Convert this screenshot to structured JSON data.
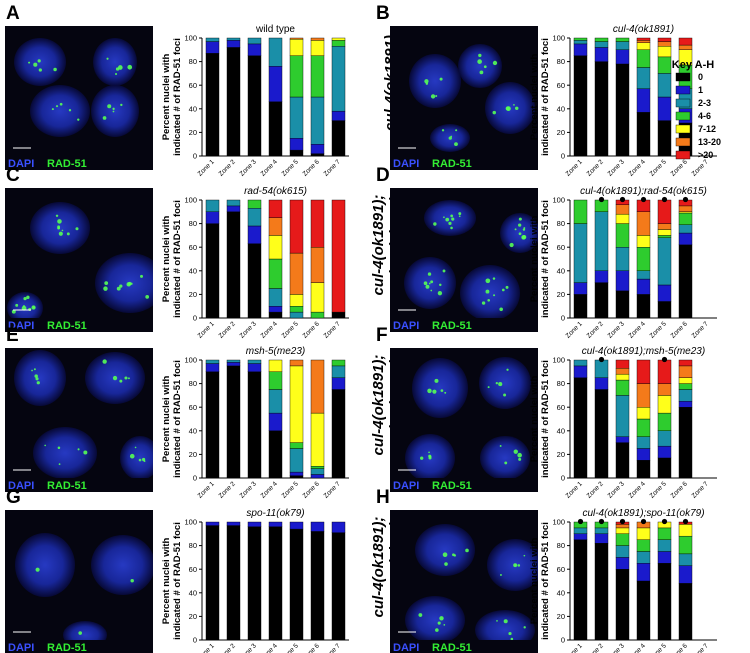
{
  "figure": {
    "stain_dapi": "DAPI",
    "stain_rad51": "RAD-51",
    "ylabel_line1": "Percent nuclei with",
    "ylabel_line2": "indicated # of RAD-51 foci",
    "zone_labels": [
      "Zone 1",
      "Zone 2",
      "Zone 3",
      "Zone 4",
      "Zone 5",
      "Zone 6",
      "Zone 7"
    ],
    "y_ticks": [
      "0",
      "20",
      "40",
      "60",
      "80",
      "100"
    ],
    "key": {
      "title": "Key A-H",
      "items": [
        {
          "label": "0",
          "color": "#000000"
        },
        {
          "label": "1",
          "color": "#1a1acc"
        },
        {
          "label": "2-3",
          "color": "#1a8fa8"
        },
        {
          "label": "4-6",
          "color": "#2ecc2e"
        },
        {
          "label": "7-12",
          "color": "#ffff1a"
        },
        {
          "label": "13-20",
          "color": "#f47a1a"
        },
        {
          "label": ">20",
          "color": "#e61a1a"
        }
      ]
    }
  },
  "panels": [
    {
      "letter": "A",
      "side_label": "wild type"
    },
    {
      "letter": "B",
      "side_label": "cul-4(ok1891)"
    },
    {
      "letter": "C",
      "side_label": "rad-54(ok615)"
    },
    {
      "letter": "D",
      "side_label": "cul-4(ok1891);\nrad-54(ok615)"
    },
    {
      "letter": "E",
      "side_label": "msh-5(me23)"
    },
    {
      "letter": "F",
      "side_label": "cul-4(ok1891);\nmsh-5(me23)"
    },
    {
      "letter": "G",
      "side_label": "spo-11(ok79)"
    },
    {
      "letter": "H",
      "side_label": "cul-4(ok1891);\nspo-11(ok79)"
    }
  ],
  "chart_data": [
    {
      "type": "bar",
      "stacked": true,
      "title": "wild type",
      "title_italic": false,
      "ylim": [
        0,
        100
      ],
      "categories": [
        "Zone 1",
        "Zone 2",
        "Zone 3",
        "Zone 4",
        "Zone 5",
        "Zone 6",
        "Zone 7"
      ],
      "markers": [],
      "series": [
        {
          "name": "0",
          "values": [
            87,
            92,
            85,
            46,
            5,
            2,
            30
          ]
        },
        {
          "name": "1",
          "values": [
            10,
            6,
            10,
            30,
            10,
            8,
            8
          ]
        },
        {
          "name": "2-3",
          "values": [
            3,
            2,
            5,
            24,
            35,
            40,
            55
          ]
        },
        {
          "name": "4-6",
          "values": [
            0,
            0,
            0,
            0,
            35,
            35,
            5
          ]
        },
        {
          "name": "7-12",
          "values": [
            0,
            0,
            0,
            0,
            14,
            13,
            2
          ]
        },
        {
          "name": "13-20",
          "values": [
            0,
            0,
            0,
            0,
            1,
            2,
            0
          ]
        },
        {
          "name": ">20",
          "values": [
            0,
            0,
            0,
            0,
            0,
            0,
            0
          ]
        }
      ]
    },
    {
      "type": "bar",
      "stacked": true,
      "title": "cul-4(ok1891)",
      "title_italic": true,
      "ylim": [
        0,
        100
      ],
      "categories": [
        "Zone 1",
        "Zone 2",
        "Zone 3",
        "Zone 4",
        "Zone 5",
        "Zone 6",
        "Zone 7"
      ],
      "markers": [],
      "series": [
        {
          "name": "0",
          "values": [
            85,
            80,
            78,
            37,
            30,
            28,
            0
          ]
        },
        {
          "name": "1",
          "values": [
            10,
            12,
            12,
            20,
            20,
            12,
            0
          ]
        },
        {
          "name": "2-3",
          "values": [
            3,
            5,
            7,
            18,
            20,
            17,
            0
          ]
        },
        {
          "name": "4-6",
          "values": [
            2,
            3,
            3,
            15,
            14,
            20,
            0
          ]
        },
        {
          "name": "7-12",
          "values": [
            0,
            0,
            0,
            6,
            9,
            13,
            0
          ]
        },
        {
          "name": "13-20",
          "values": [
            0,
            0,
            0,
            2,
            4,
            4,
            0
          ]
        },
        {
          "name": ">20",
          "values": [
            0,
            0,
            0,
            2,
            3,
            6,
            0
          ]
        }
      ]
    },
    {
      "type": "bar",
      "stacked": true,
      "title": "rad-54(ok615)",
      "title_italic": true,
      "ylim": [
        0,
        100
      ],
      "categories": [
        "Zone 1",
        "Zone 2",
        "Zone 3",
        "Zone 4",
        "Zone 5",
        "Zone 6",
        "Zone 7"
      ],
      "markers": [],
      "series": [
        {
          "name": "0",
          "values": [
            80,
            90,
            63,
            5,
            0,
            0,
            5
          ]
        },
        {
          "name": "1",
          "values": [
            10,
            5,
            15,
            5,
            0,
            0,
            0
          ]
        },
        {
          "name": "2-3",
          "values": [
            10,
            5,
            15,
            15,
            5,
            0,
            0
          ]
        },
        {
          "name": "4-6",
          "values": [
            0,
            0,
            7,
            25,
            5,
            5,
            0
          ]
        },
        {
          "name": "7-12",
          "values": [
            0,
            0,
            0,
            20,
            10,
            25,
            0
          ]
        },
        {
          "name": "13-20",
          "values": [
            0,
            0,
            0,
            15,
            35,
            30,
            0
          ]
        },
        {
          "name": ">20",
          "values": [
            0,
            0,
            0,
            15,
            45,
            40,
            95
          ]
        }
      ]
    },
    {
      "type": "bar",
      "stacked": true,
      "title": "cul-4(ok1891);rad-54(ok615)",
      "title_italic": true,
      "ylim": [
        0,
        100
      ],
      "categories": [
        "Zone 1",
        "Zone 2",
        "Zone 3",
        "Zone 4",
        "Zone 5",
        "Zone 6",
        "Zone 7"
      ],
      "markers": [
        "Zone 2",
        "Zone 3",
        "Zone 4",
        "Zone 5",
        "Zone 6"
      ],
      "series": [
        {
          "name": "0",
          "values": [
            20,
            30,
            23,
            20,
            14,
            62,
            0
          ]
        },
        {
          "name": "1",
          "values": [
            10,
            10,
            17,
            13,
            14,
            10,
            0
          ]
        },
        {
          "name": "2-3",
          "values": [
            50,
            50,
            20,
            7,
            40,
            7,
            0
          ]
        },
        {
          "name": "4-6",
          "values": [
            20,
            10,
            20,
            20,
            2,
            10,
            0
          ]
        },
        {
          "name": "7-12",
          "values": [
            0,
            0,
            8,
            10,
            5,
            1,
            0
          ]
        },
        {
          "name": "13-20",
          "values": [
            0,
            0,
            8,
            20,
            5,
            5,
            0
          ]
        },
        {
          "name": ">20",
          "values": [
            0,
            0,
            4,
            10,
            20,
            5,
            0
          ]
        }
      ]
    },
    {
      "type": "bar",
      "stacked": true,
      "title": "msh-5(me23)",
      "title_italic": true,
      "ylim": [
        0,
        100
      ],
      "categories": [
        "Zone 1",
        "Zone 2",
        "Zone 3",
        "Zone 4",
        "Zone 5",
        "Zone 6",
        "Zone 7"
      ],
      "markers": [],
      "series": [
        {
          "name": "0",
          "values": [
            90,
            95,
            90,
            40,
            2,
            0,
            75
          ]
        },
        {
          "name": "1",
          "values": [
            7,
            3,
            7,
            15,
            3,
            3,
            10
          ]
        },
        {
          "name": "2-3",
          "values": [
            3,
            2,
            3,
            20,
            20,
            5,
            10
          ]
        },
        {
          "name": "4-6",
          "values": [
            0,
            0,
            0,
            15,
            5,
            2,
            5
          ]
        },
        {
          "name": "7-12",
          "values": [
            0,
            0,
            0,
            10,
            65,
            45,
            0
          ]
        },
        {
          "name": "13-20",
          "values": [
            0,
            0,
            0,
            0,
            5,
            45,
            0
          ]
        },
        {
          "name": ">20",
          "values": [
            0,
            0,
            0,
            0,
            0,
            0,
            0
          ]
        }
      ]
    },
    {
      "type": "bar",
      "stacked": true,
      "title": "cul-4(ok1891);msh-5(me23)",
      "title_italic": true,
      "ylim": [
        0,
        100
      ],
      "categories": [
        "Zone 1",
        "Zone 2",
        "Zone 3",
        "Zone 4",
        "Zone 5",
        "Zone 6",
        "Zone 7"
      ],
      "markers": [
        "Zone 2",
        "Zone 5"
      ],
      "series": [
        {
          "name": "0",
          "values": [
            85,
            75,
            30,
            15,
            17,
            60,
            0
          ]
        },
        {
          "name": "1",
          "values": [
            10,
            10,
            5,
            10,
            10,
            5,
            0
          ]
        },
        {
          "name": "2-3",
          "values": [
            5,
            15,
            35,
            10,
            13,
            10,
            0
          ]
        },
        {
          "name": "4-6",
          "values": [
            0,
            0,
            13,
            15,
            15,
            5,
            0
          ]
        },
        {
          "name": "7-12",
          "values": [
            0,
            0,
            5,
            10,
            15,
            5,
            0
          ]
        },
        {
          "name": "13-20",
          "values": [
            0,
            0,
            5,
            20,
            10,
            10,
            0
          ]
        },
        {
          "name": ">20",
          "values": [
            0,
            0,
            7,
            20,
            20,
            5,
            0
          ]
        }
      ]
    },
    {
      "type": "bar",
      "stacked": true,
      "title": "spo-11(ok79)",
      "title_italic": true,
      "ylim": [
        0,
        100
      ],
      "categories": [
        "Zone 1",
        "Zone 2",
        "Zone 3",
        "Zone 4",
        "Zone 5",
        "Zone 6",
        "Zone 7"
      ],
      "markers": [],
      "series": [
        {
          "name": "0",
          "values": [
            97,
            97,
            96,
            96,
            94,
            92,
            91
          ]
        },
        {
          "name": "1",
          "values": [
            3,
            3,
            4,
            4,
            6,
            8,
            9
          ]
        },
        {
          "name": "2-3",
          "values": [
            0,
            0,
            0,
            0,
            0,
            0,
            0
          ]
        },
        {
          "name": "4-6",
          "values": [
            0,
            0,
            0,
            0,
            0,
            0,
            0
          ]
        },
        {
          "name": "7-12",
          "values": [
            0,
            0,
            0,
            0,
            0,
            0,
            0
          ]
        },
        {
          "name": "13-20",
          "values": [
            0,
            0,
            0,
            0,
            0,
            0,
            0
          ]
        },
        {
          "name": ">20",
          "values": [
            0,
            0,
            0,
            0,
            0,
            0,
            0
          ]
        }
      ]
    },
    {
      "type": "bar",
      "stacked": true,
      "title": "cul-4(ok1891);spo-11(ok79)",
      "title_italic": true,
      "ylim": [
        0,
        100
      ],
      "categories": [
        "Zone 1",
        "Zone 2",
        "Zone 3",
        "Zone 4",
        "Zone 5",
        "Zone 6",
        "Zone 7"
      ],
      "markers": [
        "Zone 1",
        "Zone 2",
        "Zone 3",
        "Zone 4",
        "Zone 5",
        "Zone 6"
      ],
      "series": [
        {
          "name": "0",
          "values": [
            85,
            82,
            60,
            50,
            65,
            48,
            0
          ]
        },
        {
          "name": "1",
          "values": [
            5,
            8,
            10,
            15,
            10,
            15,
            0
          ]
        },
        {
          "name": "2-3",
          "values": [
            5,
            5,
            10,
            10,
            10,
            10,
            0
          ]
        },
        {
          "name": "4-6",
          "values": [
            5,
            5,
            10,
            10,
            10,
            15,
            0
          ]
        },
        {
          "name": "7-12",
          "values": [
            0,
            0,
            5,
            10,
            5,
            10,
            0
          ]
        },
        {
          "name": "13-20",
          "values": [
            0,
            0,
            3,
            5,
            0,
            0,
            0
          ]
        },
        {
          "name": ">20",
          "values": [
            0,
            0,
            2,
            0,
            0,
            2,
            0
          ]
        }
      ]
    }
  ]
}
